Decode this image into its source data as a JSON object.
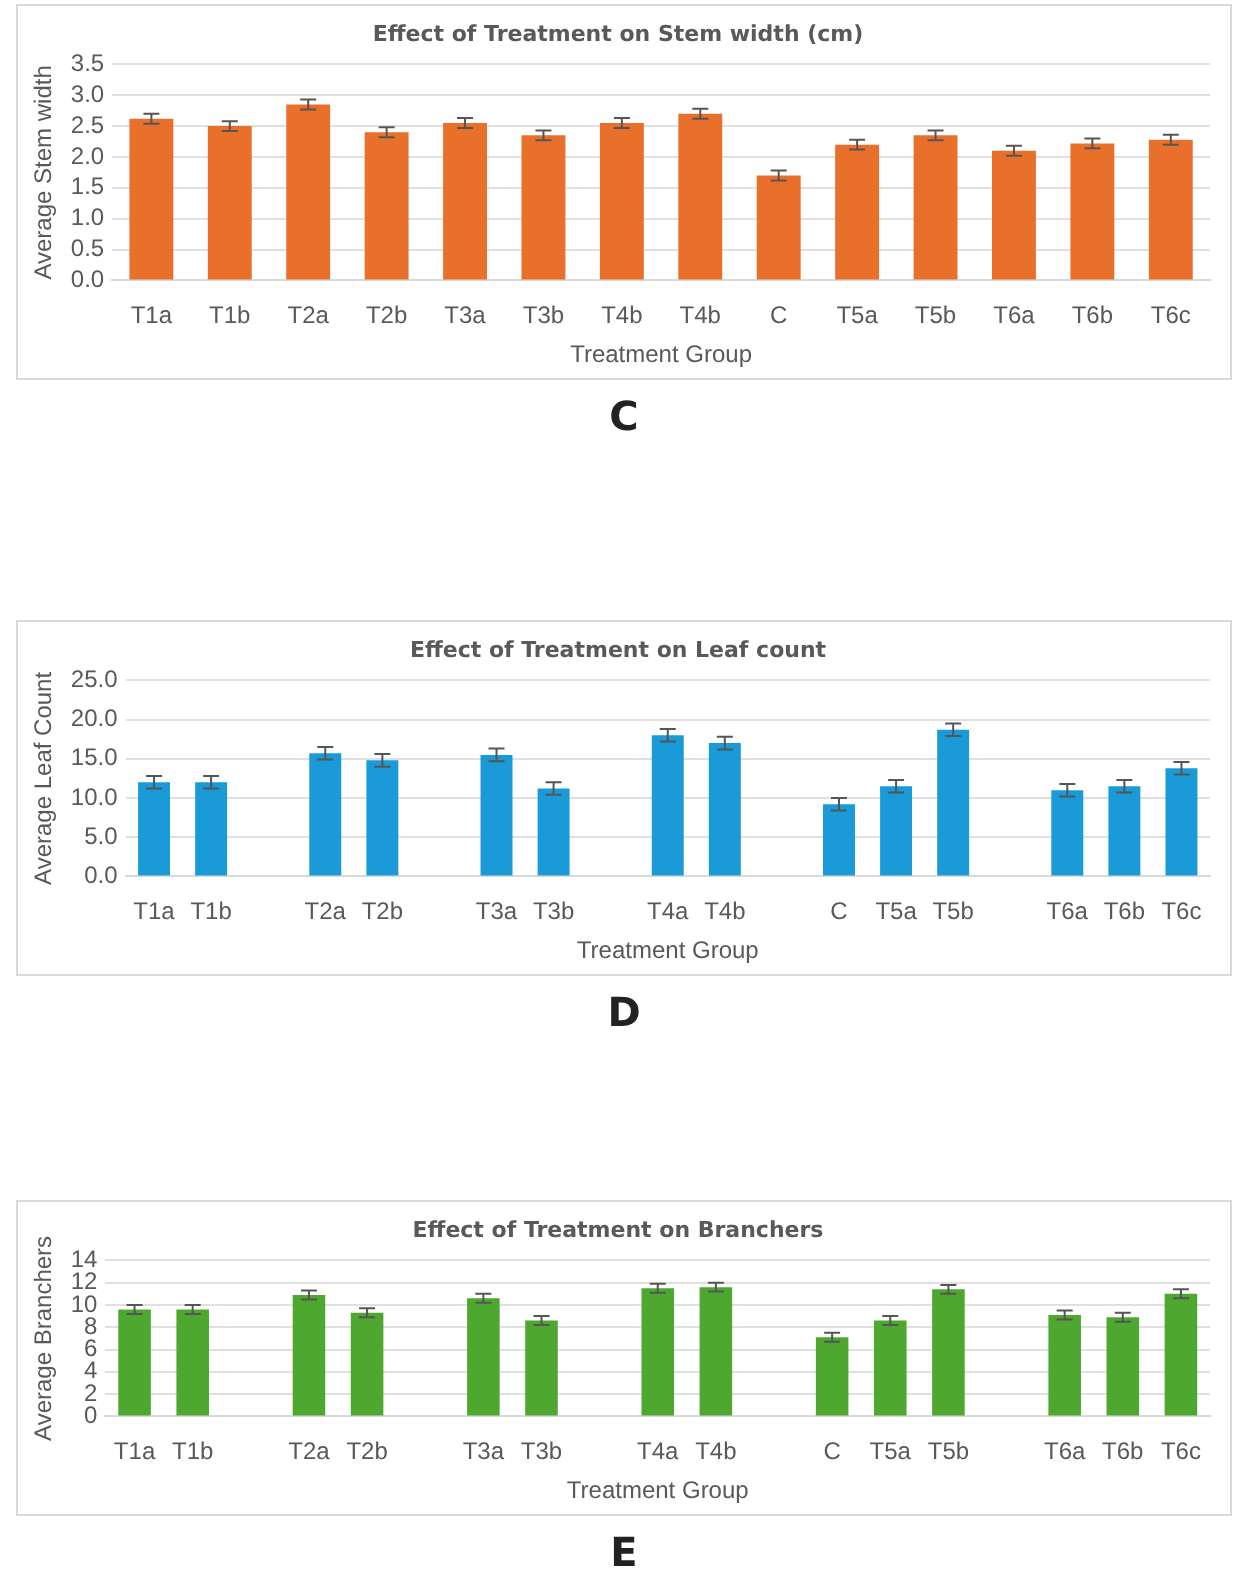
{
  "chart_data": [
    {
      "type": "bar",
      "title": "Effect of Treatment on Stem width (cm)",
      "xlabel": "Treatment Group",
      "ylabel": "Average Stem width",
      "annotations": [
        "C"
      ],
      "categories": [
        "T1a",
        "T1b",
        "T2a",
        "T2b",
        "T3a",
        "T3b",
        "T4b",
        "T4b",
        "C",
        "T5a",
        "T5b",
        "T6a",
        "T6b",
        "T6c"
      ],
      "color": "#e8702a",
      "values": [
        2.62,
        2.5,
        2.85,
        2.4,
        2.55,
        2.35,
        2.55,
        2.7,
        1.7,
        2.2,
        2.35,
        2.1,
        2.22,
        2.28
      ],
      "errors": [
        0.08,
        0.08,
        0.08,
        0.08,
        0.08,
        0.08,
        0.08,
        0.08,
        0.08,
        0.08,
        0.08,
        0.08,
        0.08,
        0.08
      ],
      "ylim": [
        0,
        3.5
      ],
      "yticks": [
        {
          "value": 0,
          "label": "0.0"
        },
        {
          "value": 0.5,
          "label": "0.5"
        },
        {
          "value": 1,
          "label": "1.0"
        },
        {
          "value": 1.5,
          "label": "1.5"
        },
        {
          "value": 2,
          "label": "2.0"
        },
        {
          "value": 2.5,
          "label": "2.5"
        },
        {
          "value": 3,
          "label": "3.0"
        },
        {
          "value": 3.5,
          "label": "3.5"
        }
      ],
      "grid": "y",
      "legend": false
    },
    {
      "type": "bar",
      "title": "Effect of Treatment on Leaf count",
      "xlabel": "Treatment Group",
      "ylabel": "Average Leaf Count",
      "annotations": [
        "D"
      ],
      "categories": [
        "T1a",
        "T1b",
        null,
        "T2a",
        "T2b",
        null,
        "T3a",
        "T3b",
        null,
        "T4a",
        "T4b",
        null,
        "C",
        "T5a",
        "T5b",
        null,
        "T6a",
        "T6b",
        "T6c"
      ],
      "color": "#1a9bd7",
      "values": [
        12,
        12,
        null,
        15.7,
        14.8,
        null,
        15.5,
        11.2,
        null,
        18,
        17,
        null,
        9.2,
        11.5,
        18.7,
        null,
        11,
        11.5,
        13.8
      ],
      "errors": [
        0.8,
        0.8,
        null,
        0.8,
        0.8,
        null,
        0.8,
        0.8,
        null,
        0.8,
        0.8,
        null,
        0.8,
        0.8,
        0.8,
        null,
        0.8,
        0.8,
        0.8
      ],
      "ylim": [
        0,
        25
      ],
      "yticks": [
        {
          "value": 0,
          "label": "0.0"
        },
        {
          "value": 5,
          "label": "5.0"
        },
        {
          "value": 10,
          "label": "10.0"
        },
        {
          "value": 15,
          "label": "15.0"
        },
        {
          "value": 20,
          "label": "20.0"
        },
        {
          "value": 25,
          "label": "25.0"
        }
      ],
      "grid": "y",
      "legend": false
    },
    {
      "type": "bar",
      "title": "Effect of Treatment on Branchers",
      "xlabel": "Treatment Group",
      "ylabel": "Average Branchers",
      "annotations": [
        "E"
      ],
      "categories": [
        "T1a",
        "T1b",
        null,
        "T2a",
        "T2b",
        null,
        "T3a",
        "T3b",
        null,
        "T4a",
        "T4b",
        null,
        "C",
        "T5a",
        "T5b",
        null,
        "T6a",
        "T6b",
        "T6c"
      ],
      "color": "#4ea72e",
      "values": [
        9.6,
        9.6,
        null,
        10.9,
        9.3,
        null,
        10.6,
        8.6,
        null,
        11.5,
        11.6,
        null,
        7.1,
        8.6,
        11.4,
        null,
        9.1,
        8.9,
        11.0
      ],
      "errors": [
        0.4,
        0.4,
        null,
        0.4,
        0.4,
        null,
        0.4,
        0.4,
        null,
        0.4,
        0.4,
        null,
        0.4,
        0.4,
        0.4,
        null,
        0.4,
        0.4,
        0.4
      ],
      "ylim": [
        0,
        14
      ],
      "yticks": [
        0,
        2,
        4,
        6,
        8,
        10,
        12,
        14
      ],
      "grid": "y",
      "legend": false
    }
  ]
}
